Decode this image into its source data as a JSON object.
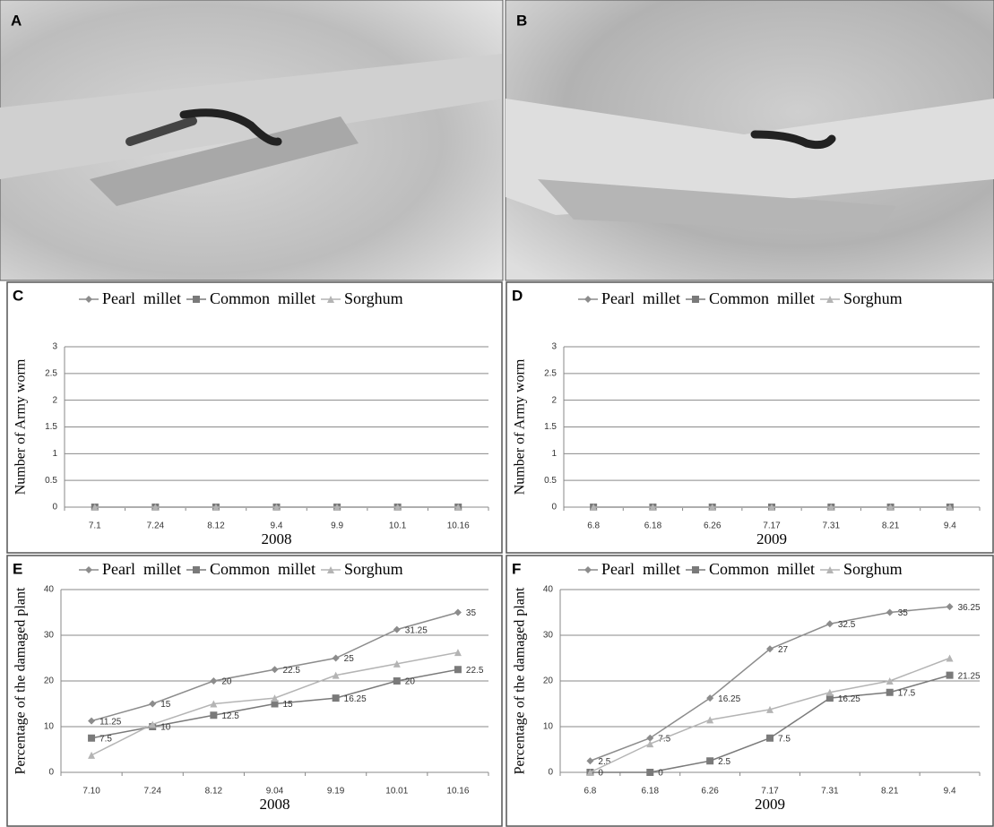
{
  "photos": [
    {
      "label": "A"
    },
    {
      "label": "B"
    }
  ],
  "chart_data": [
    {
      "type": "line",
      "label": "C",
      "y_label": "Number of Army worm",
      "x_label": "2008",
      "categories": [
        "7.1",
        "7.24",
        "8.12",
        "9.4",
        "9.9",
        "10.1",
        "10.16"
      ],
      "ylim": [
        0,
        3
      ],
      "yticks": [
        0,
        0.5,
        1,
        1.5,
        2,
        2.5,
        3
      ],
      "grid": true,
      "legend": "top",
      "series": [
        {
          "name": "Pearl  millet",
          "color": "#8c8c8c",
          "marker": "diamond",
          "data_labels": false,
          "values": [
            0,
            0,
            0,
            0,
            0,
            0,
            0
          ]
        },
        {
          "name": "Common  millet",
          "color": "#7a7a7a",
          "marker": "square",
          "data_labels": false,
          "values": [
            0,
            0,
            0,
            0,
            0,
            0,
            0
          ]
        },
        {
          "name": "Sorghum",
          "color": "#b4b4b4",
          "marker": "triangle",
          "data_labels": false,
          "values": [
            0,
            0,
            0,
            0,
            0,
            0,
            0
          ]
        }
      ]
    },
    {
      "type": "line",
      "label": "D",
      "y_label": "Number of Army worm",
      "x_label": "2009",
      "categories": [
        "6.8",
        "6.18",
        "6.26",
        "7.17",
        "7.31",
        "8.21",
        "9.4"
      ],
      "ylim": [
        0,
        3
      ],
      "yticks": [
        0,
        0.5,
        1,
        1.5,
        2,
        2.5,
        3
      ],
      "grid": true,
      "legend": "top",
      "series": [
        {
          "name": "Pearl  millet",
          "color": "#8c8c8c",
          "marker": "diamond",
          "data_labels": false,
          "values": [
            0,
            0,
            0,
            0,
            0,
            0,
            0
          ]
        },
        {
          "name": "Common  millet",
          "color": "#7a7a7a",
          "marker": "square",
          "data_labels": false,
          "values": [
            0,
            0,
            0,
            0,
            0,
            0,
            0
          ]
        },
        {
          "name": "Sorghum",
          "color": "#b4b4b4",
          "marker": "triangle",
          "data_labels": false,
          "values": [
            0,
            0,
            0,
            0,
            0,
            0,
            0
          ]
        }
      ]
    },
    {
      "type": "line",
      "label": "E",
      "y_label": "Percentage of the damaged plant",
      "x_label": "2008",
      "categories": [
        "7.10",
        "7.24",
        "8.12",
        "9.04",
        "9.19",
        "10.01",
        "10.16"
      ],
      "ylim": [
        0,
        40
      ],
      "yticks": [
        0,
        10,
        20,
        30,
        40
      ],
      "grid": true,
      "legend": "top",
      "series": [
        {
          "name": "Pearl  millet",
          "color": "#8c8c8c",
          "marker": "diamond",
          "data_labels": true,
          "values": [
            11.25,
            15,
            20,
            22.5,
            25,
            31.25,
            35
          ]
        },
        {
          "name": "Common  millet",
          "color": "#7a7a7a",
          "marker": "square",
          "data_labels": true,
          "values": [
            7.5,
            10,
            12.5,
            15,
            16.25,
            20,
            22.5
          ]
        },
        {
          "name": "Sorghum",
          "color": "#b4b4b4",
          "marker": "triangle",
          "data_labels": false,
          "values": [
            3.75,
            10.5,
            15,
            16.25,
            21.25,
            23.75,
            26.25
          ]
        }
      ]
    },
    {
      "type": "line",
      "label": "F",
      "y_label": "Percentage of the damaged plant",
      "x_label": "2009",
      "categories": [
        "6.8",
        "6.18",
        "6.26",
        "7.17",
        "7.31",
        "8.21",
        "9.4"
      ],
      "ylim": [
        0,
        40
      ],
      "yticks": [
        0,
        10,
        20,
        30,
        40
      ],
      "grid": true,
      "legend": "top",
      "series": [
        {
          "name": "Pearl  millet",
          "color": "#8c8c8c",
          "marker": "diamond",
          "data_labels": true,
          "values": [
            2.5,
            7.5,
            16.25,
            27,
            32.5,
            35,
            36.25
          ]
        },
        {
          "name": "Common  millet",
          "color": "#7a7a7a",
          "marker": "square",
          "data_labels": true,
          "values": [
            0,
            0,
            2.5,
            7.5,
            16.25,
            17.5,
            21.25
          ]
        },
        {
          "name": "Sorghum",
          "color": "#b4b4b4",
          "marker": "triangle",
          "data_labels": false,
          "values": [
            0,
            6.25,
            11.5,
            13.75,
            17.5,
            20,
            25
          ]
        }
      ]
    }
  ]
}
